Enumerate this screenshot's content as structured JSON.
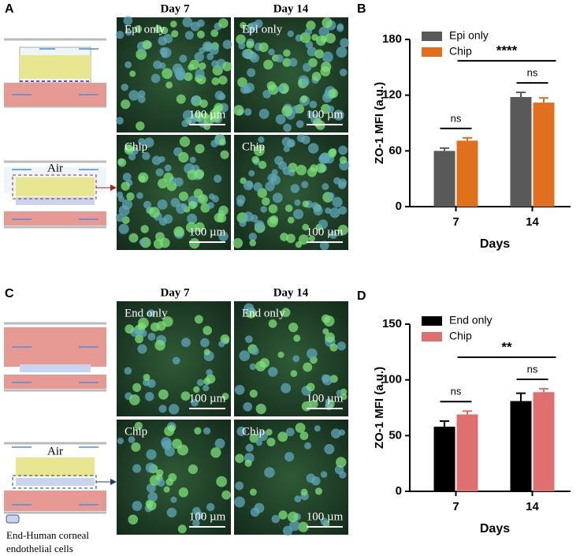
{
  "panel_labels": [
    "A",
    "B",
    "C",
    "D"
  ],
  "panel_a": {
    "columns": [
      "Day 7",
      "Day 14"
    ],
    "image_labels": [
      "Epi only",
      "Epi only",
      "Chip",
      "Chip"
    ],
    "scale_bar": "100 µm",
    "diagram_label": "Air"
  },
  "panel_c": {
    "columns": [
      "Day 7",
      "Day 14"
    ],
    "image_labels": [
      "End only",
      "End only",
      "Chip",
      "Chip"
    ],
    "scale_bar": "100 µm",
    "diagram_label": "Air",
    "legend": [
      "End-Human corneal",
      "endothelial cells"
    ]
  },
  "chart_data": [
    {
      "type": "bar",
      "categories": [
        "7",
        "14"
      ],
      "xlabel": "Days",
      "ylabel": "ZO-1 MFI (a.u.)",
      "ylim": [
        0,
        180
      ],
      "yticks": [
        0,
        60,
        120,
        180
      ],
      "series": [
        {
          "name": "Epi only",
          "color": "#595959",
          "values": [
            60,
            118
          ],
          "errors": [
            3,
            5
          ]
        },
        {
          "name": "Chip",
          "color": "#e0701e",
          "values": [
            71,
            112
          ],
          "errors": [
            3,
            5
          ]
        }
      ],
      "annotations": [
        "ns",
        "ns",
        "****"
      ]
    },
    {
      "type": "bar",
      "categories": [
        "7",
        "14"
      ],
      "xlabel": "Days",
      "ylabel": "ZO-1 MFI (a.u.)",
      "ylim": [
        0,
        150
      ],
      "yticks": [
        0,
        50,
        100,
        150
      ],
      "series": [
        {
          "name": "End only",
          "color": "#000000",
          "values": [
            58,
            81
          ],
          "errors": [
            5,
            7
          ]
        },
        {
          "name": "Chip",
          "color": "#e07070",
          "values": [
            69,
            89
          ],
          "errors": [
            3,
            3
          ]
        }
      ],
      "annotations": [
        "ns",
        "ns",
        "**"
      ]
    }
  ]
}
